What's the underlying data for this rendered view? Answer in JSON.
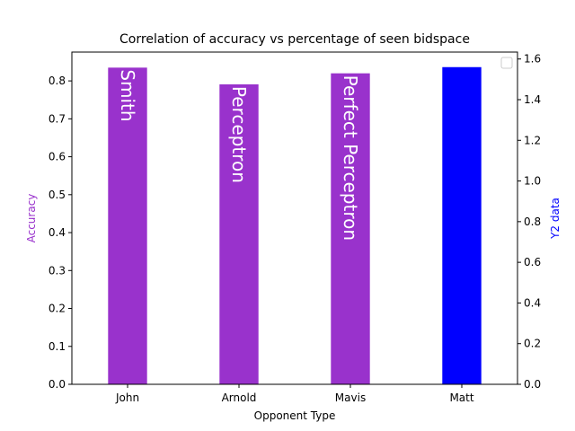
{
  "chart_data": {
    "type": "bar",
    "title": "Correlation of accuracy vs percentage of seen bidspace",
    "xlabel": "Opponent Type",
    "ylabel": "Accuracy",
    "y2label": "Y2 data",
    "categories": [
      "John",
      "Arnold",
      "Mavis",
      "Matt"
    ],
    "series": [
      {
        "axis": "left",
        "color": "#9932CC",
        "values": [
          0.835,
          0.791,
          0.82,
          null
        ],
        "bar_labels": [
          "Smith",
          "Perceptron",
          "Perfect Perceptron",
          null
        ]
      },
      {
        "axis": "right",
        "color": "#0000FF",
        "values": [
          null,
          null,
          null,
          1.56
        ]
      }
    ],
    "ylim": [
      0,
      0.876
    ],
    "y2lim": [
      0,
      1.634
    ],
    "yticks": [
      "0.0",
      "0.1",
      "0.2",
      "0.3",
      "0.4",
      "0.5",
      "0.6",
      "0.7",
      "0.8"
    ],
    "y2ticks": [
      "0.0",
      "0.2",
      "0.4",
      "0.6",
      "0.8",
      "1.0",
      "1.2",
      "1.4",
      "1.6"
    ],
    "ylabel_color": "#9932CC",
    "y2label_color": "#0000FF",
    "grid": false,
    "legend": "top-right"
  }
}
